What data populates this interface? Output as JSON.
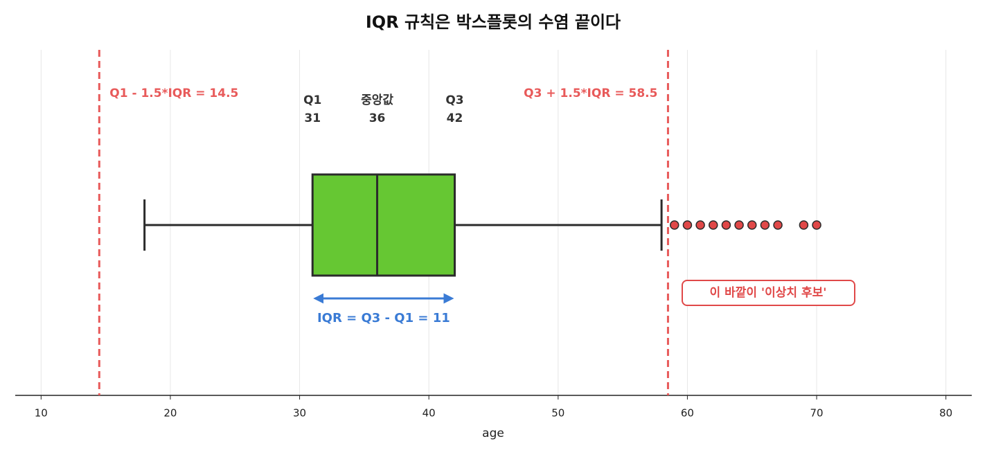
{
  "chart_data": {
    "type": "box",
    "title": "IQR 규칙은 박스플롯의 수염 끝이다",
    "xlabel": "age",
    "xlim": [
      8,
      82
    ],
    "xticks": [
      10,
      20,
      30,
      40,
      50,
      60,
      70,
      80
    ],
    "grid": true,
    "box": {
      "whislo": 18,
      "q1": 31,
      "median": 36,
      "q3": 42,
      "whishi": 58
    },
    "box_color": "#66c733",
    "box_labels": {
      "q1": "Q1",
      "median": "중앙값",
      "q3": "Q3"
    },
    "outliers": [
      59,
      60,
      61,
      62,
      63,
      64,
      65,
      66,
      67,
      69,
      70
    ],
    "outlier_color": "#e04848",
    "fences": [
      {
        "value": 14.5,
        "label": "Q1 - 1.5*IQR = 14.5"
      },
      {
        "value": 58.5,
        "label": "Q3 + 1.5*IQR = 58.5"
      }
    ],
    "fence_color": "#e85a5a",
    "iqr_annotation": {
      "value": 11,
      "label": "IQR = Q3 - Q1 = 11"
    },
    "outlier_annotation": "이 바깥이 '이상치 후보'"
  }
}
